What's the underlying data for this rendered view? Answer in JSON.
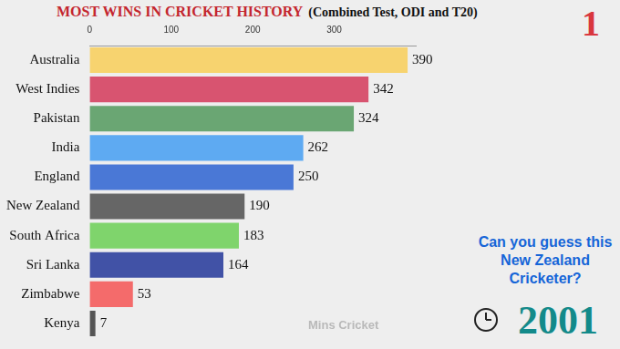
{
  "chart_data": {
    "type": "bar",
    "orientation": "horizontal",
    "title": "MOST WINS IN CRICKET HISTORY",
    "subtitle": "(Combined Test, ODI and T20)",
    "categories": [
      "Australia",
      "West Indies",
      "Pakistan",
      "India",
      "England",
      "New Zealand",
      "South Africa",
      "Sri Lanka",
      "Zimbabwe",
      "Kenya"
    ],
    "values": [
      390,
      342,
      324,
      262,
      250,
      190,
      183,
      164,
      53,
      7
    ],
    "colors": [
      "#f7d36f",
      "#d85470",
      "#6aa673",
      "#5eaaf2",
      "#4a78d6",
      "#666666",
      "#7fd46c",
      "#4152a6",
      "#f46b6b",
      "#555555"
    ],
    "xlim": [
      0,
      400
    ],
    "xticks": [
      0,
      100,
      200,
      300
    ],
    "grid": false,
    "data_labels": true,
    "annotations": [
      "1",
      "Can you guess this New Zealand Cricketer?",
      "2001",
      "Mins Cricket"
    ]
  }
}
